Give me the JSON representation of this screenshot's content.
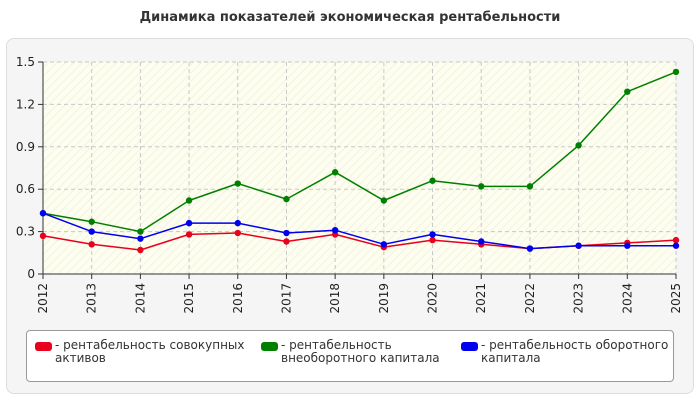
{
  "chart_data": {
    "type": "line",
    "title": "Динамика показателей экономическая рентабельности",
    "x": [
      "2012",
      "2013",
      "2014",
      "2015",
      "2016",
      "2017",
      "2018",
      "2019",
      "2020",
      "2021",
      "2022",
      "2023",
      "2024",
      "2025"
    ],
    "ylim": [
      0,
      1.5
    ],
    "yticks": [
      "0",
      "0.3",
      "0.6",
      "0.9",
      "1.2",
      "1.5"
    ],
    "grid": true,
    "legend_position": "bottom",
    "series": [
      {
        "name": "- рентабельность совокупных активов",
        "color": "#e8001c",
        "values": [
          0.27,
          0.21,
          0.17,
          0.28,
          0.29,
          0.23,
          0.28,
          0.19,
          0.24,
          0.21,
          0.18,
          0.2,
          0.22,
          0.24
        ]
      },
      {
        "name": "- рентабельность внеоборотного капитала",
        "color": "#008000",
        "values": [
          0.43,
          0.37,
          0.3,
          0.52,
          0.64,
          0.53,
          0.72,
          0.52,
          0.66,
          0.62,
          0.62,
          0.91,
          1.29,
          1.43
        ]
      },
      {
        "name": "- рентабельность оборотного капитала",
        "color": "#0000ee",
        "values": [
          0.43,
          0.3,
          0.25,
          0.36,
          0.36,
          0.29,
          0.31,
          0.21,
          0.28,
          0.23,
          0.18,
          0.2,
          0.2,
          0.2
        ]
      }
    ]
  }
}
